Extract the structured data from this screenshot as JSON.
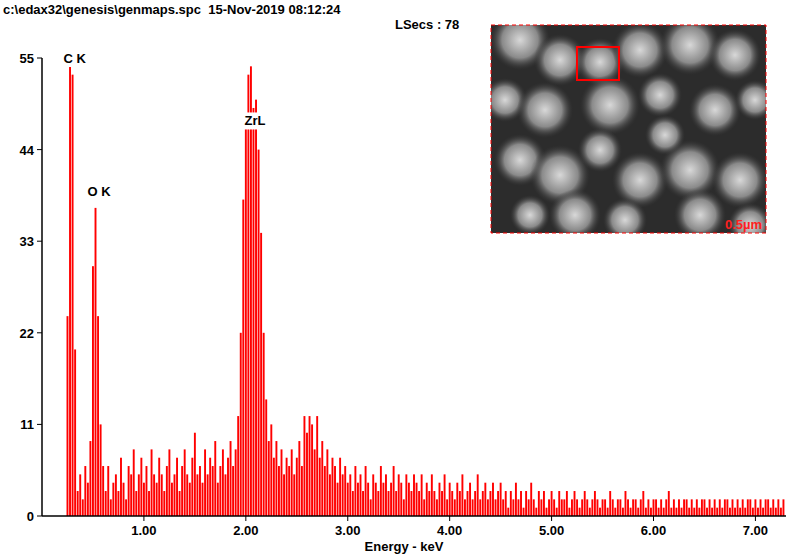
{
  "chart_data": {
    "type": "bar",
    "title": "c:\\edax32\\genesis\\genmaps.spc  15-Nov-2019 08:12:24",
    "subtitle": "LSecs : 78",
    "x_label": "Energy - keV",
    "color": "#ff0000",
    "grid": false,
    "xlim": [
      0,
      7.3
    ],
    "ylim": [
      0,
      55
    ],
    "xticks": [
      {
        "value": 1,
        "label": "1.00"
      },
      {
        "value": 2,
        "label": "2.00"
      },
      {
        "value": 3,
        "label": "3.00"
      },
      {
        "value": 4,
        "label": "4.00"
      },
      {
        "value": 5,
        "label": "5.00"
      },
      {
        "value": 6,
        "label": "6.00"
      },
      {
        "value": 7,
        "label": "7.00"
      }
    ],
    "yticks": [
      0,
      11,
      22,
      33,
      44,
      55
    ],
    "annotations": [
      {
        "text": "C K",
        "x": 0.32,
        "y": 55
      },
      {
        "text": "O K",
        "x": 0.56,
        "y": 39
      },
      {
        "text": "ZrL",
        "x": 2.09,
        "y": 47.5
      }
    ],
    "x": [
      0.25,
      0.275,
      0.3,
      0.325,
      0.35,
      0.375,
      0.4,
      0.425,
      0.45,
      0.475,
      0.5,
      0.525,
      0.55,
      0.575,
      0.6,
      0.625,
      0.65,
      0.675,
      0.7,
      0.725,
      0.75,
      0.775,
      0.8,
      0.825,
      0.85,
      0.875,
      0.9,
      0.925,
      0.95,
      0.975,
      1.0,
      1.025,
      1.05,
      1.075,
      1.1,
      1.125,
      1.15,
      1.175,
      1.2,
      1.225,
      1.25,
      1.275,
      1.3,
      1.325,
      1.35,
      1.375,
      1.4,
      1.425,
      1.45,
      1.475,
      1.5,
      1.525,
      1.55,
      1.575,
      1.6,
      1.625,
      1.65,
      1.675,
      1.7,
      1.725,
      1.75,
      1.775,
      1.8,
      1.825,
      1.85,
      1.875,
      1.9,
      1.925,
      1.95,
      1.975,
      2.0,
      2.025,
      2.05,
      2.075,
      2.1,
      2.125,
      2.15,
      2.175,
      2.2,
      2.225,
      2.25,
      2.275,
      2.3,
      2.325,
      2.35,
      2.375,
      2.4,
      2.425,
      2.45,
      2.475,
      2.5,
      2.525,
      2.55,
      2.575,
      2.6,
      2.625,
      2.65,
      2.675,
      2.7,
      2.725,
      2.75,
      2.775,
      2.8,
      2.825,
      2.85,
      2.875,
      2.9,
      2.925,
      2.95,
      2.975,
      3.0,
      3.025,
      3.05,
      3.075,
      3.1,
      3.125,
      3.15,
      3.175,
      3.2,
      3.225,
      3.25,
      3.275,
      3.3,
      3.325,
      3.35,
      3.375,
      3.4,
      3.425,
      3.45,
      3.475,
      3.5,
      3.525,
      3.55,
      3.575,
      3.6,
      3.625,
      3.65,
      3.675,
      3.7,
      3.725,
      3.75,
      3.775,
      3.8,
      3.825,
      3.85,
      3.875,
      3.9,
      3.925,
      3.95,
      3.975,
      4.0,
      4.025,
      4.05,
      4.075,
      4.1,
      4.125,
      4.15,
      4.175,
      4.2,
      4.225,
      4.25,
      4.275,
      4.3,
      4.325,
      4.35,
      4.375,
      4.4,
      4.425,
      4.45,
      4.475,
      4.5,
      4.525,
      4.55,
      4.575,
      4.6,
      4.625,
      4.65,
      4.675,
      4.7,
      4.725,
      4.75,
      4.775,
      4.8,
      4.825,
      4.85,
      4.875,
      4.9,
      4.925,
      4.95,
      4.975,
      5.0,
      5.025,
      5.05,
      5.075,
      5.1,
      5.125,
      5.15,
      5.175,
      5.2,
      5.225,
      5.25,
      5.275,
      5.3,
      5.325,
      5.35,
      5.375,
      5.4,
      5.425,
      5.45,
      5.475,
      5.5,
      5.525,
      5.55,
      5.575,
      5.6,
      5.625,
      5.65,
      5.675,
      5.7,
      5.725,
      5.75,
      5.775,
      5.8,
      5.825,
      5.85,
      5.875,
      5.9,
      5.925,
      5.95,
      5.975,
      6.0,
      6.025,
      6.05,
      6.075,
      6.1,
      6.125,
      6.15,
      6.175,
      6.2,
      6.225,
      6.25,
      6.275,
      6.3,
      6.325,
      6.35,
      6.375,
      6.4,
      6.425,
      6.45,
      6.475,
      6.5,
      6.525,
      6.55,
      6.575,
      6.6,
      6.625,
      6.65,
      6.675,
      6.7,
      6.725,
      6.75,
      6.775,
      6.8,
      6.825,
      6.85,
      6.875,
      6.9,
      6.925,
      6.95,
      6.975,
      7.0,
      7.025,
      7.05,
      7.075,
      7.1,
      7.125,
      7.15,
      7.175,
      7.2,
      7.225,
      7.25,
      7.275
    ],
    "values": [
      24,
      55,
      53,
      20,
      3,
      5,
      2,
      6,
      4,
      9,
      30,
      37,
      24,
      11,
      6,
      3,
      6,
      2,
      4,
      5,
      3,
      7,
      4,
      2,
      6,
      5,
      8,
      3,
      5,
      7,
      4,
      6,
      3,
      8,
      5,
      4,
      7,
      5,
      3,
      6,
      8,
      4,
      5,
      7,
      3,
      6,
      8,
      5,
      4,
      7,
      10,
      5,
      6,
      4,
      8,
      5,
      7,
      6,
      9,
      4,
      6,
      8,
      5,
      7,
      9,
      6,
      8,
      12,
      22,
      38,
      47,
      53,
      54,
      49,
      50,
      44,
      34,
      22,
      14,
      9,
      11,
      7,
      9,
      6,
      8,
      5,
      7,
      6,
      8,
      5,
      7,
      9,
      6,
      12,
      10,
      12,
      11,
      8,
      12,
      7,
      9,
      6,
      8,
      5,
      7,
      6,
      4,
      7,
      5,
      6,
      4,
      5,
      3,
      6,
      4,
      5,
      3,
      6,
      4,
      2,
      5,
      4,
      3,
      6,
      4,
      5,
      3,
      4,
      6,
      3,
      5,
      4,
      2,
      5,
      4,
      3,
      5,
      4,
      3,
      5,
      2,
      4,
      3,
      5,
      3,
      2,
      4,
      3,
      5,
      2,
      4,
      3,
      2,
      4,
      3,
      5,
      2,
      3,
      4,
      2,
      3,
      5,
      2,
      3,
      4,
      2,
      3,
      4,
      2,
      3,
      4,
      2,
      3,
      1,
      3,
      2,
      4,
      2,
      3,
      1,
      3,
      2,
      4,
      2,
      1,
      3,
      2,
      3,
      1,
      2,
      3,
      2,
      1,
      3,
      2,
      2,
      3,
      1,
      2,
      3,
      2,
      1,
      2,
      3,
      2,
      1,
      2,
      3,
      2,
      1,
      2,
      2,
      1,
      3,
      2,
      1,
      2,
      2,
      1,
      3,
      2,
      1,
      2,
      2,
      1,
      2,
      3,
      1,
      2,
      1,
      2,
      2,
      1,
      2,
      1,
      2,
      3,
      1,
      2,
      1,
      2,
      1,
      2,
      2,
      1,
      2,
      1,
      2,
      1,
      2,
      2,
      1,
      2,
      1,
      2,
      1,
      2,
      1,
      2,
      2,
      1,
      2,
      1,
      2,
      1,
      2,
      1,
      2,
      2,
      1,
      2,
      1,
      2,
      1,
      2,
      2,
      1,
      2,
      1,
      2,
      1,
      2
    ]
  },
  "inset": {
    "scale_label": "0.5µm"
  }
}
